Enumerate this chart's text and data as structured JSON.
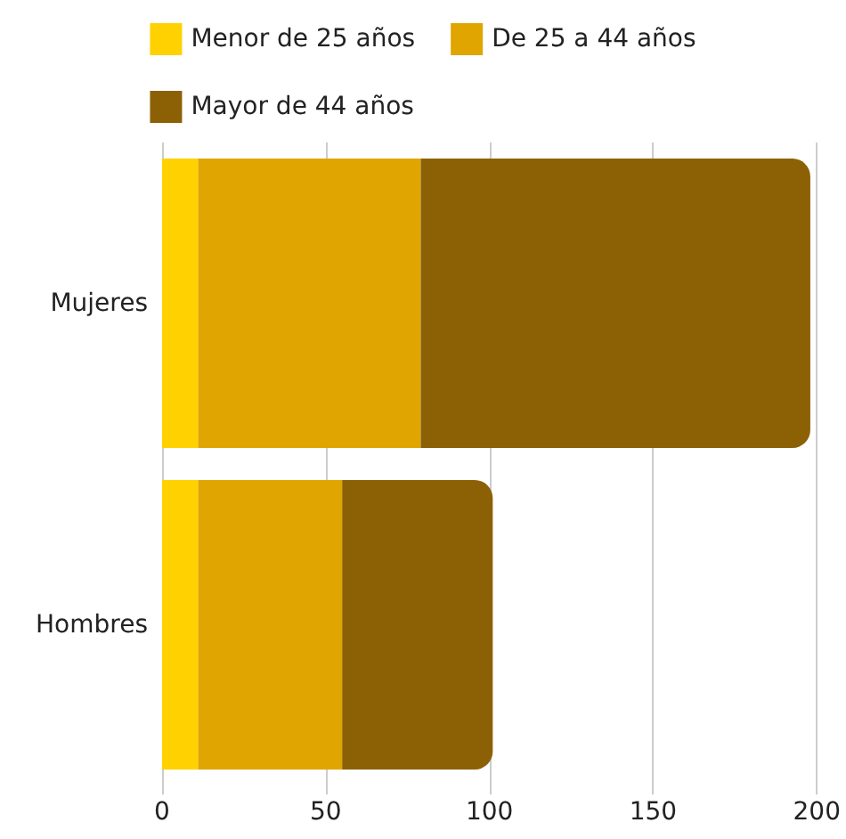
{
  "chart_data": {
    "type": "bar",
    "orientation": "horizontal",
    "stacked": true,
    "categories": [
      "Mujeres",
      "Hombres"
    ],
    "series": [
      {
        "name": "Menor de 25 años",
        "color": "#ffd100",
        "values": [
          11,
          11
        ]
      },
      {
        "name": "De 25 a 44 años",
        "color": "#e0a500",
        "values": [
          68,
          44
        ]
      },
      {
        "name": "Mayor de 44 años",
        "color": "#8c6105",
        "values": [
          119,
          46
        ]
      }
    ],
    "xlim": [
      0,
      200
    ],
    "xticks": [
      0,
      50,
      100,
      150,
      200
    ],
    "grid": "x",
    "legend": "top"
  }
}
